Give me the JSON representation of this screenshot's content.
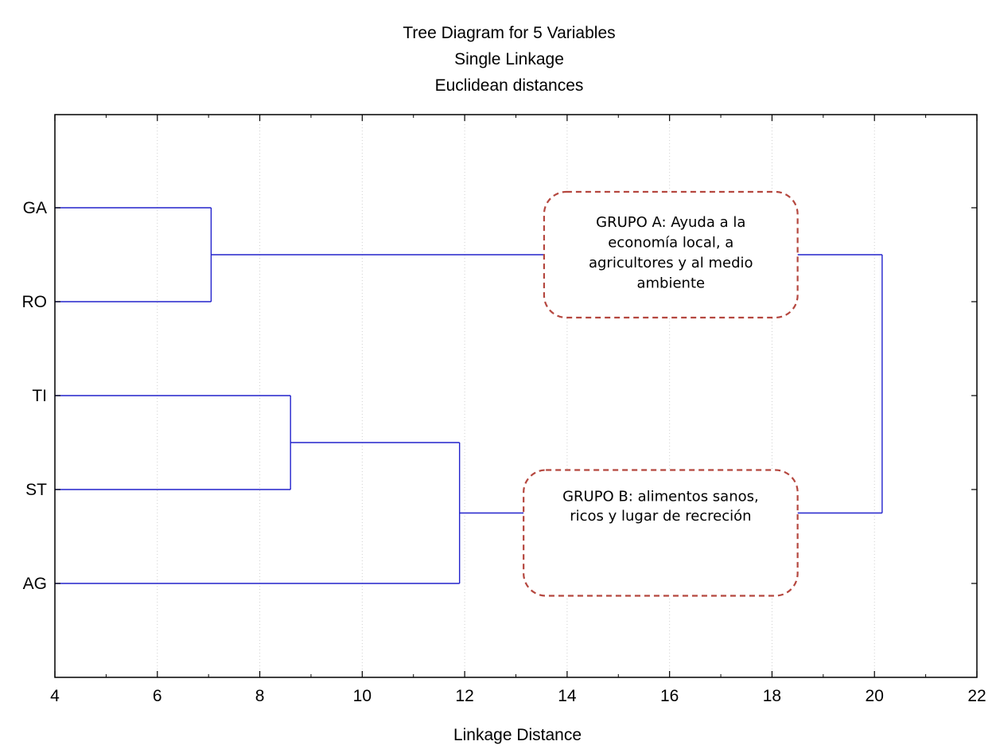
{
  "chart_data": {
    "type": "dendrogram",
    "title": [
      "Tree Diagram for 5   Variables",
      "Single Linkage",
      "Euclidean distances"
    ],
    "xlabel": "Linkage Distance",
    "ylabel": "",
    "xlim": [
      4,
      22
    ],
    "x_ticks": [
      4,
      6,
      8,
      10,
      12,
      14,
      16,
      18,
      20,
      22
    ],
    "x_minor_step": 1,
    "grid": "vertical-dotted",
    "leaves": [
      "GA",
      "RO",
      "TI",
      "ST",
      "AG"
    ],
    "merges": [
      {
        "a": "GA",
        "b": "RO",
        "height": 7.05
      },
      {
        "a": "TI",
        "b": "ST",
        "height": 8.6
      },
      {
        "a": "TI+ST",
        "b": "AG",
        "height": 11.9
      },
      {
        "a": "GA+RO",
        "b": "TI+ST+AG",
        "height": 20.15
      }
    ],
    "annotations": [
      {
        "group": "GA+RO",
        "lines": [
          "GRUPO A: Ayuda a la",
          "economía local, a",
          "agricultores y al medio",
          "ambiente"
        ],
        "x_from": 13.55,
        "x_to": 18.5
      },
      {
        "group": "TI+ST+AG",
        "lines": [
          "GRUPO B: alimentos sanos,",
          "ricos y lugar de recreción",
          ""
        ],
        "x_from": 13.15,
        "x_to": 18.5
      }
    ],
    "colors": {
      "tree_line": "#2222cc",
      "annotation_border": "#b5473f",
      "axis": "#000000",
      "grid": "#cfcfcf"
    }
  }
}
